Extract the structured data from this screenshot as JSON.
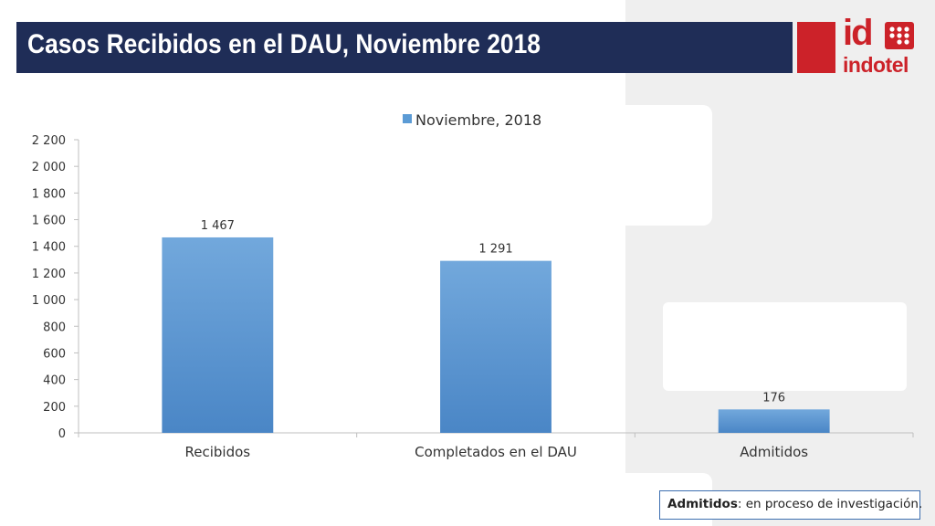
{
  "slide": {
    "title": "Casos Recibidos en el DAU, Noviembre 2018",
    "logo_text": "indotel",
    "logo_mark": "id",
    "note_term": "Admitidos",
    "note_rest": ": en proceso de investigación."
  },
  "colors": {
    "bar": "#5b9bd5",
    "title_bg": "#1f2d57",
    "brand_red": "#cc2229"
  },
  "chart_data": {
    "type": "bar",
    "title": "",
    "categories": [
      "Recibidos",
      "Completados en el DAU",
      "Admitidos"
    ],
    "series": [
      {
        "name": "Noviembre, 2018",
        "values": [
          1467,
          1291,
          176
        ]
      }
    ],
    "data_labels": [
      "1 467",
      "1 291",
      "176"
    ],
    "y_ticks": [
      0,
      200,
      400,
      600,
      800,
      1000,
      1200,
      1400,
      1600,
      1800,
      2000,
      2200
    ],
    "y_tick_labels": [
      "0",
      "200",
      "400",
      "600",
      "800",
      "1 000",
      "1 200",
      "1 400",
      "1 600",
      "1 800",
      "2 000",
      "2 200"
    ],
    "ylim": [
      0,
      2200
    ],
    "xlabel": "",
    "ylabel": "",
    "legend": "top-center",
    "grid": false
  }
}
